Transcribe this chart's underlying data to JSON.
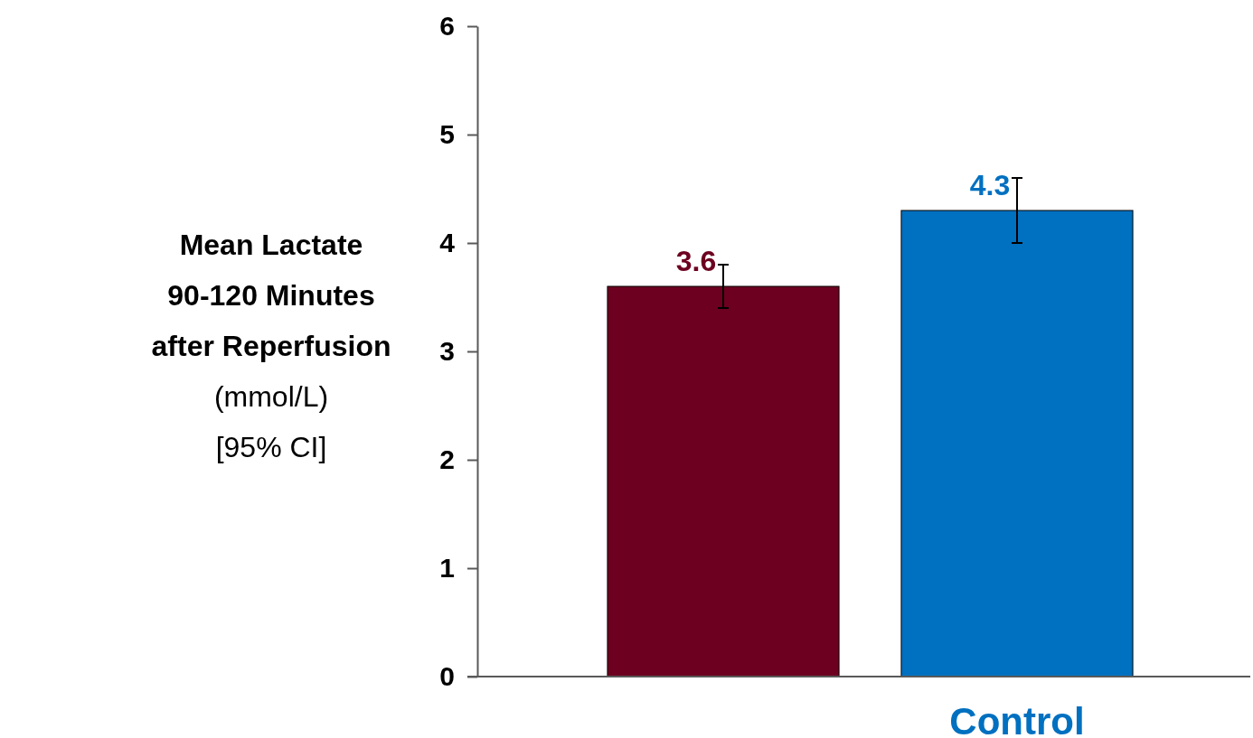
{
  "chart_data": {
    "type": "bar",
    "ylabel": "Mean Lactate\n90-120 Minutes\nafter Reperfusion\n(mmol/L)\n[95% CI]",
    "categories": [
      null,
      "Control"
    ],
    "values": [
      3.6,
      4.3
    ],
    "colors": [
      "#6d0020",
      "#0070c0"
    ],
    "errors": [
      [
        3.4,
        3.8
      ],
      [
        4.0,
        4.6
      ]
    ],
    "data_labels": true,
    "ylim": [
      0,
      6
    ],
    "yticks": [
      0,
      1,
      2,
      3,
      4,
      5,
      6
    ],
    "grid": false
  }
}
